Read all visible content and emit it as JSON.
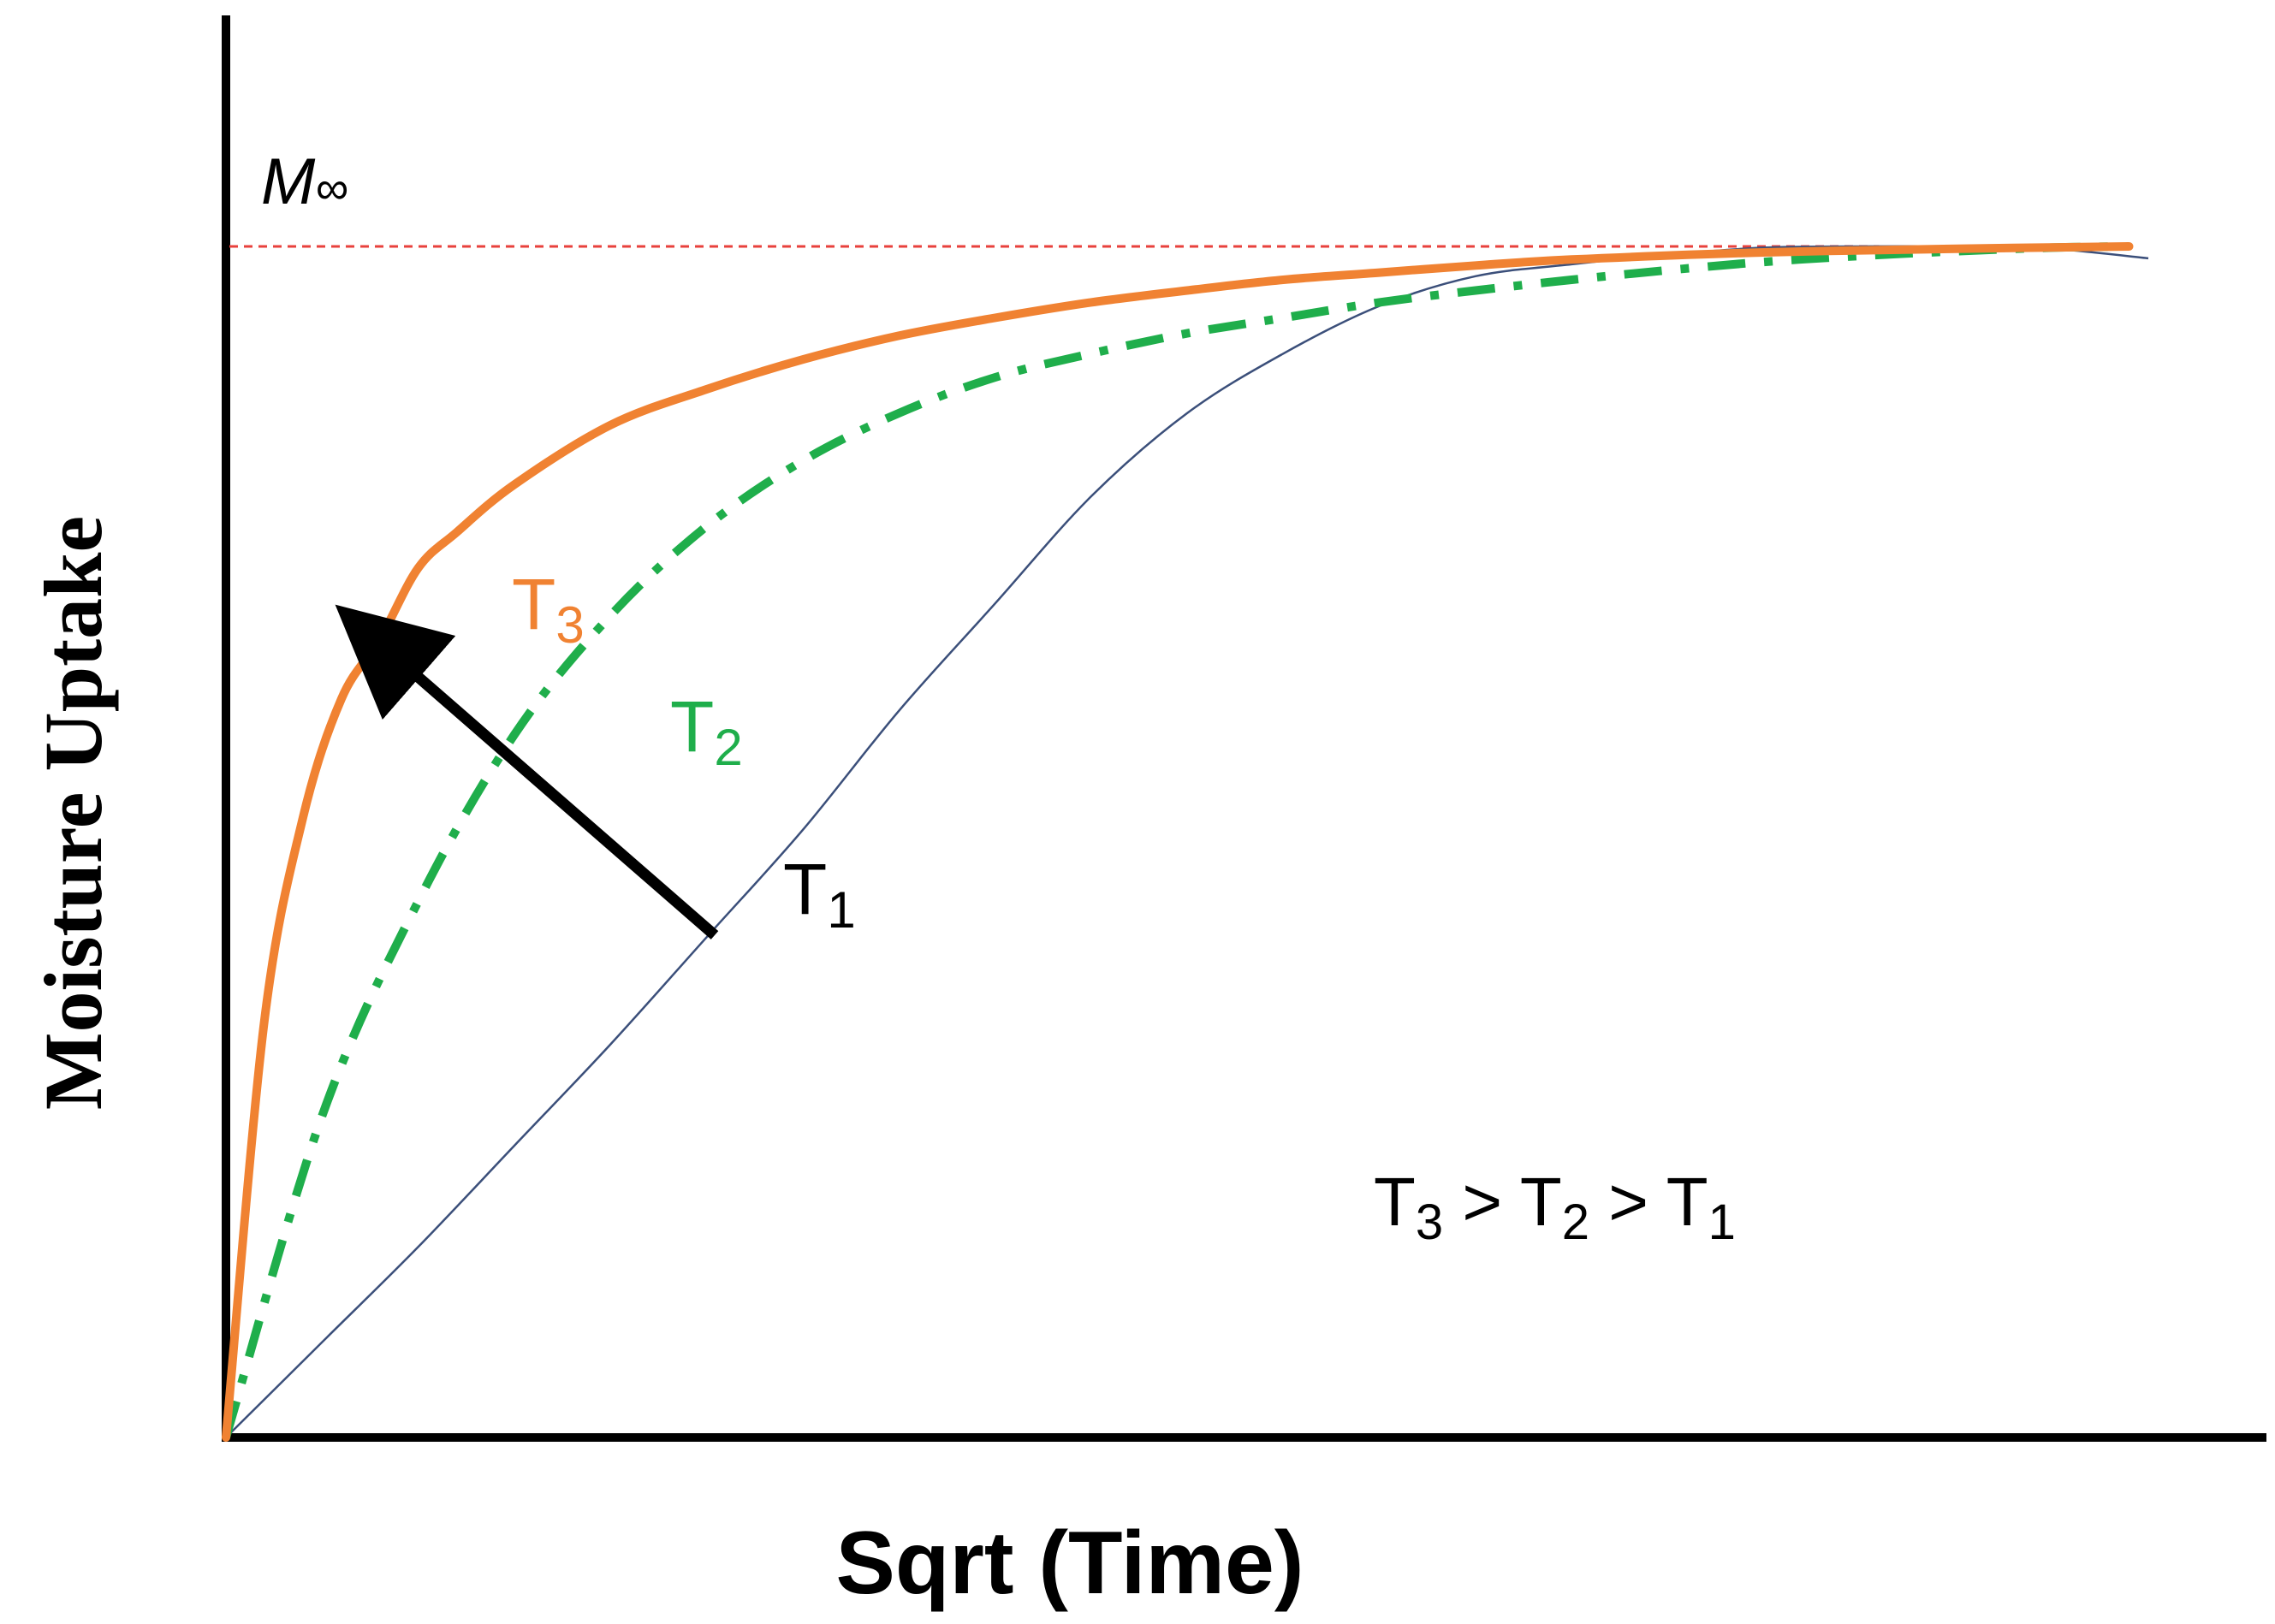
{
  "chart_data": {
    "type": "line",
    "xlabel": "Sqrt (Time)",
    "ylabel": "Moisture Uptake",
    "xlim": [
      0,
      1
    ],
    "ylim": [
      0,
      1
    ],
    "grid": false,
    "asymptote": {
      "label_main": "M",
      "label_sub": "∞",
      "y": 1.0,
      "color": "#e8413c"
    },
    "series": [
      {
        "name": "T1",
        "color": "#3b4f7a",
        "points": [
          [
            0,
            0
          ],
          [
            0.05,
            0.08
          ],
          [
            0.1,
            0.16
          ],
          [
            0.15,
            0.245
          ],
          [
            0.2,
            0.33
          ],
          [
            0.25,
            0.42
          ],
          [
            0.3,
            0.51
          ],
          [
            0.35,
            0.61
          ],
          [
            0.4,
            0.7
          ],
          [
            0.45,
            0.79
          ],
          [
            0.5,
            0.86
          ],
          [
            0.55,
            0.91
          ],
          [
            0.6,
            0.95
          ],
          [
            0.65,
            0.975
          ],
          [
            0.7,
            0.985
          ],
          [
            0.75,
            0.993
          ],
          [
            0.8,
            0.999
          ],
          [
            0.85,
            1.0
          ],
          [
            0.9,
            1.0
          ],
          [
            0.95,
            0.998
          ],
          [
            1.0,
            0.99
          ]
        ]
      },
      {
        "name": "T2",
        "color": "#1fae4b",
        "points": [
          [
            0,
            0
          ],
          [
            0.05,
            0.27
          ],
          [
            0.1,
            0.45
          ],
          [
            0.15,
            0.59
          ],
          [
            0.2,
            0.69
          ],
          [
            0.25,
            0.765
          ],
          [
            0.3,
            0.82
          ],
          [
            0.35,
            0.86
          ],
          [
            0.4,
            0.89
          ],
          [
            0.45,
            0.91
          ],
          [
            0.5,
            0.927
          ],
          [
            0.55,
            0.94
          ],
          [
            0.6,
            0.953
          ],
          [
            0.65,
            0.963
          ],
          [
            0.7,
            0.972
          ],
          [
            0.75,
            0.98
          ],
          [
            0.8,
            0.987
          ],
          [
            0.85,
            0.992
          ],
          [
            0.9,
            0.996
          ],
          [
            0.95,
            0.999
          ],
          [
            0.99,
            1.0
          ]
        ]
      },
      {
        "name": "T3",
        "color": "#f08232",
        "points": [
          [
            0,
            0
          ],
          [
            0.02,
            0.35
          ],
          [
            0.04,
            0.52
          ],
          [
            0.06,
            0.62
          ],
          [
            0.08,
            0.67
          ],
          [
            0.1,
            0.73
          ],
          [
            0.12,
            0.76
          ],
          [
            0.15,
            0.8
          ],
          [
            0.2,
            0.85
          ],
          [
            0.25,
            0.88
          ],
          [
            0.3,
            0.905
          ],
          [
            0.35,
            0.925
          ],
          [
            0.4,
            0.94
          ],
          [
            0.45,
            0.953
          ],
          [
            0.5,
            0.963
          ],
          [
            0.55,
            0.972
          ],
          [
            0.6,
            0.978
          ],
          [
            0.65,
            0.984
          ],
          [
            0.7,
            0.989
          ],
          [
            0.8,
            0.995
          ],
          [
            0.9,
            0.998
          ],
          [
            0.99,
            1.0
          ]
        ]
      }
    ],
    "curve_labels": [
      {
        "main": "T",
        "sub": "3",
        "color": "#f08232"
      },
      {
        "main": "T",
        "sub": "2",
        "color": "#1fae4b"
      },
      {
        "main": "T",
        "sub": "1",
        "color": "#000000"
      }
    ],
    "annotation": {
      "parts": [
        {
          "main": "T",
          "sub": "3"
        },
        {
          "op": " > "
        },
        {
          "main": "T",
          "sub": "2"
        },
        {
          "op": " > "
        },
        {
          "main": "T",
          "sub": "1"
        }
      ]
    },
    "arrow": {
      "meaning": "increasing temperature",
      "color": "#000000"
    }
  }
}
